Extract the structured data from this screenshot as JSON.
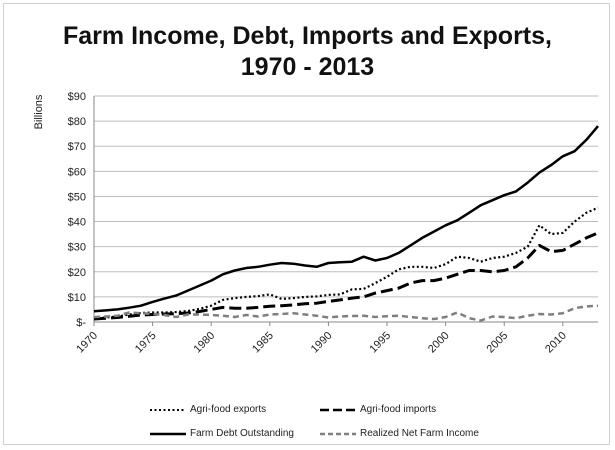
{
  "title_line1": "Farm Income, Debt, Imports and Exports,",
  "title_line2": "1970 - 2013",
  "chart_data": {
    "type": "line",
    "title": "Farm Income, Debt, Imports and Exports, 1970 - 2013",
    "ylabel": "Billions",
    "xlabel": "",
    "ylim": [
      0,
      90
    ],
    "xlim": [
      1970,
      2013
    ],
    "grid": true,
    "legend_position": "bottom",
    "x_ticks": [
      1970,
      1975,
      1980,
      1985,
      1990,
      1995,
      2000,
      2005,
      2010
    ],
    "y_ticks": [
      0,
      10,
      20,
      30,
      40,
      50,
      60,
      70,
      80,
      90
    ],
    "y_tick_labels": [
      "$-",
      "$10",
      "$20",
      "$30",
      "$40",
      "$50",
      "$60",
      "$70",
      "$80",
      "$90"
    ],
    "x": [
      1970,
      1971,
      1972,
      1973,
      1974,
      1975,
      1976,
      1977,
      1978,
      1979,
      1980,
      1981,
      1982,
      1983,
      1984,
      1985,
      1986,
      1987,
      1988,
      1989,
      1990,
      1991,
      1992,
      1993,
      1994,
      1995,
      1996,
      1997,
      1998,
      1999,
      2000,
      2001,
      2002,
      2003,
      2004,
      2005,
      2006,
      2007,
      2008,
      2009,
      2010,
      2011,
      2012,
      2013
    ],
    "series": [
      {
        "name": "Agri-food exports",
        "style": "dotted",
        "color": "#000000",
        "values": [
          1.5,
          1.8,
          2.2,
          3.0,
          3.6,
          3.8,
          3.8,
          4.0,
          4.4,
          5.2,
          6.5,
          8.8,
          9.5,
          10.0,
          10.3,
          11.0,
          9.2,
          9.5,
          10.0,
          10.2,
          10.8,
          11.0,
          13.0,
          13.2,
          15.5,
          18.0,
          21.0,
          22.0,
          22.0,
          21.5,
          23.0,
          26.0,
          25.5,
          24.0,
          25.5,
          26.0,
          27.5,
          30.0,
          38.5,
          35.0,
          35.5,
          40.0,
          43.5,
          45.5
        ]
      },
      {
        "name": "Agri-food imports",
        "style": "long-dash",
        "color": "#000000",
        "values": [
          1.2,
          1.5,
          1.8,
          2.3,
          2.8,
          3.0,
          3.2,
          3.3,
          3.6,
          4.2,
          5.0,
          5.8,
          5.5,
          5.5,
          5.8,
          6.3,
          6.5,
          6.8,
          7.3,
          7.5,
          8.2,
          8.8,
          9.5,
          10.0,
          11.5,
          12.5,
          13.5,
          15.5,
          16.5,
          16.5,
          17.5,
          19.0,
          20.5,
          20.5,
          20.0,
          20.5,
          22.0,
          25.5,
          30.5,
          28.0,
          28.5,
          31.0,
          33.5,
          35.5
        ]
      },
      {
        "name": "Farm Debt Outstanding",
        "style": "solid",
        "color": "#000000",
        "values": [
          4.3,
          4.6,
          5.0,
          5.7,
          6.5,
          8.0,
          9.3,
          10.5,
          12.5,
          14.5,
          16.5,
          19.0,
          20.5,
          21.5,
          22.0,
          22.8,
          23.5,
          23.2,
          22.5,
          22.0,
          23.5,
          23.8,
          24.0,
          26.0,
          24.5,
          25.5,
          27.5,
          30.5,
          33.5,
          36.0,
          38.5,
          40.5,
          43.5,
          46.5,
          48.5,
          50.5,
          52.0,
          55.5,
          59.5,
          62.5,
          66.0,
          68.0,
          72.5,
          78.0
        ]
      },
      {
        "name": "Realized Net Farm Income",
        "style": "dashed",
        "color": "#7f7f7f",
        "values": [
          2.0,
          2.2,
          2.5,
          3.8,
          3.5,
          3.2,
          2.8,
          2.0,
          3.0,
          3.0,
          2.8,
          2.5,
          2.0,
          2.8,
          2.2,
          3.0,
          3.2,
          3.5,
          3.0,
          2.5,
          1.8,
          2.2,
          2.4,
          2.5,
          2.0,
          2.3,
          2.5,
          2.0,
          1.5,
          1.2,
          2.0,
          3.8,
          1.5,
          0.6,
          2.2,
          2.0,
          1.5,
          2.5,
          3.2,
          3.0,
          3.5,
          5.5,
          6.2,
          6.5
        ]
      }
    ]
  }
}
